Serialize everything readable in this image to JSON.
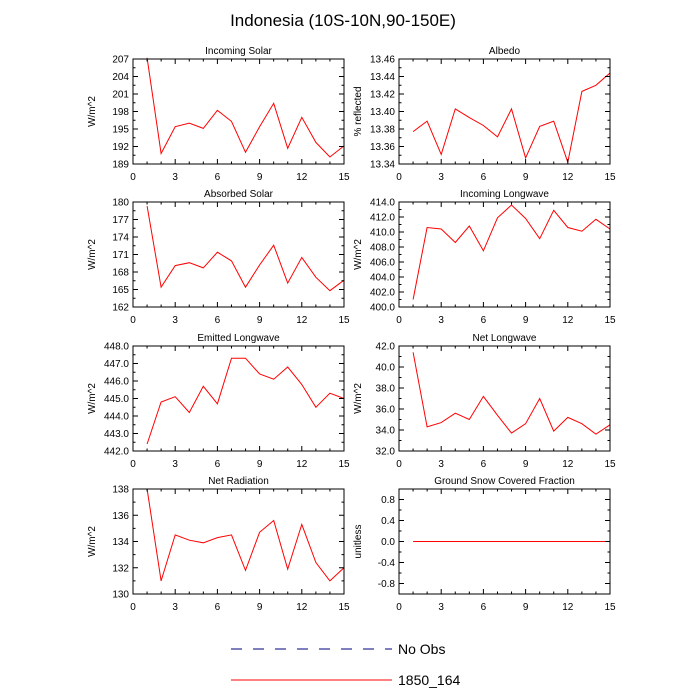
{
  "title": "Indonesia (10S-10N,90-150E)",
  "colors": {
    "model": "#ff0000",
    "obs": "#000080"
  },
  "legend": [
    {
      "label": "No Obs",
      "style": "dashed",
      "color": "#000080"
    },
    {
      "label": "1850_164",
      "style": "solid",
      "color": "#ff0000"
    }
  ],
  "chart_data": [
    {
      "type": "line",
      "title": "Incoming Solar",
      "ylabel": "W/m^2",
      "xlabel": "",
      "xlim": [
        0,
        15
      ],
      "xticks": [
        0,
        3,
        6,
        9,
        12,
        15
      ],
      "ylim": [
        189,
        207
      ],
      "yticks": [
        189,
        192,
        195,
        198,
        201,
        204,
        207
      ],
      "ytick_decimals": 0,
      "grid": false,
      "series": [
        {
          "name": "1850_164",
          "x": [
            1,
            2,
            3,
            4,
            5,
            6,
            7,
            8,
            9,
            10,
            11,
            12,
            13,
            14,
            15
          ],
          "values": [
            207.2,
            190.8,
            195.4,
            196.0,
            195.1,
            198.2,
            196.3,
            191.0,
            195.4,
            199.4,
            191.7,
            197.0,
            192.7,
            190.2,
            192.1
          ]
        }
      ]
    },
    {
      "type": "line",
      "title": "Albedo",
      "ylabel": "% reflected",
      "xlabel": "",
      "xlim": [
        0,
        15
      ],
      "xticks": [
        0,
        3,
        6,
        9,
        12,
        15
      ],
      "ylim": [
        13.34,
        13.46
      ],
      "yticks": [
        13.34,
        13.36,
        13.38,
        13.4,
        13.42,
        13.44,
        13.46
      ],
      "ytick_decimals": 2,
      "grid": false,
      "series": [
        {
          "name": "1850_164",
          "x": [
            1,
            2,
            3,
            4,
            5,
            6,
            7,
            8,
            9,
            10,
            11,
            12,
            13,
            14,
            15
          ],
          "values": [
            13.377,
            13.389,
            13.351,
            13.403,
            13.393,
            13.384,
            13.371,
            13.403,
            13.347,
            13.383,
            13.389,
            13.342,
            13.423,
            13.43,
            13.444
          ]
        }
      ]
    },
    {
      "type": "line",
      "title": "Absorbed Solar",
      "ylabel": "W/m^2",
      "xlabel": "",
      "xlim": [
        0,
        15
      ],
      "xticks": [
        0,
        3,
        6,
        9,
        12,
        15
      ],
      "ylim": [
        162,
        180
      ],
      "yticks": [
        162,
        165,
        168,
        171,
        174,
        177,
        180
      ],
      "ytick_decimals": 0,
      "grid": false,
      "series": [
        {
          "name": "1850_164",
          "x": [
            1,
            2,
            3,
            4,
            5,
            6,
            7,
            8,
            9,
            10,
            11,
            12,
            13,
            14,
            15
          ],
          "values": [
            179.3,
            165.4,
            169.1,
            169.6,
            168.7,
            171.4,
            169.9,
            165.4,
            169.2,
            172.6,
            166.1,
            170.5,
            167.1,
            164.8,
            166.6
          ]
        }
      ]
    },
    {
      "type": "line",
      "title": "Incoming Longwave",
      "ylabel": "W/m^2",
      "xlabel": "",
      "xlim": [
        0,
        15
      ],
      "xticks": [
        0,
        3,
        6,
        9,
        12,
        15
      ],
      "ylim": [
        400,
        414
      ],
      "yticks": [
        400,
        402,
        404,
        406,
        408,
        410,
        412,
        414
      ],
      "ytick_decimals": 1,
      "grid": false,
      "series": [
        {
          "name": "1850_164",
          "x": [
            1,
            2,
            3,
            4,
            5,
            6,
            7,
            8,
            9,
            10,
            11,
            12,
            13,
            14,
            15
          ],
          "values": [
            401.0,
            410.6,
            410.4,
            408.6,
            410.8,
            407.5,
            411.9,
            413.6,
            411.8,
            409.1,
            412.9,
            410.6,
            410.1,
            411.7,
            410.4
          ]
        }
      ]
    },
    {
      "type": "line",
      "title": "Emitted Longwave",
      "ylabel": "W/m^2",
      "xlabel": "",
      "xlim": [
        0,
        15
      ],
      "xticks": [
        0,
        3,
        6,
        9,
        12,
        15
      ],
      "ylim": [
        442,
        448
      ],
      "yticks": [
        442,
        443,
        444,
        445,
        446,
        447,
        448
      ],
      "ytick_decimals": 1,
      "grid": false,
      "series": [
        {
          "name": "1850_164",
          "x": [
            1,
            2,
            3,
            4,
            5,
            6,
            7,
            8,
            9,
            10,
            11,
            12,
            13,
            14,
            15
          ],
          "values": [
            442.4,
            444.8,
            445.1,
            444.2,
            445.7,
            444.7,
            447.3,
            447.3,
            446.4,
            446.1,
            446.8,
            445.8,
            444.5,
            445.3,
            445.0
          ]
        }
      ]
    },
    {
      "type": "line",
      "title": "Net Longwave",
      "ylabel": "W/m^2",
      "xlabel": "",
      "xlim": [
        0,
        15
      ],
      "xticks": [
        0,
        3,
        6,
        9,
        12,
        15
      ],
      "ylim": [
        32,
        42
      ],
      "yticks": [
        32,
        34,
        36,
        38,
        40,
        42
      ],
      "ytick_decimals": 1,
      "grid": false,
      "series": [
        {
          "name": "1850_164",
          "x": [
            1,
            2,
            3,
            4,
            5,
            6,
            7,
            8,
            9,
            10,
            11,
            12,
            13,
            14,
            15
          ],
          "values": [
            41.4,
            34.3,
            34.7,
            35.6,
            35.0,
            37.2,
            35.4,
            33.7,
            34.6,
            37.0,
            33.9,
            35.2,
            34.6,
            33.6,
            34.5
          ]
        }
      ]
    },
    {
      "type": "line",
      "title": "Net Radiation",
      "ylabel": "W/m^2",
      "xlabel": "",
      "xlim": [
        0,
        15
      ],
      "xticks": [
        0,
        3,
        6,
        9,
        12,
        15
      ],
      "ylim": [
        130,
        138
      ],
      "yticks": [
        130,
        132,
        134,
        136,
        138
      ],
      "ytick_decimals": 0,
      "grid": false,
      "series": [
        {
          "name": "1850_164",
          "x": [
            1,
            2,
            3,
            4,
            5,
            6,
            7,
            8,
            9,
            10,
            11,
            12,
            13,
            14,
            15
          ],
          "values": [
            138.0,
            131.0,
            134.5,
            134.1,
            133.9,
            134.3,
            134.5,
            131.8,
            134.7,
            135.6,
            131.9,
            135.3,
            132.4,
            131.0,
            132.0
          ]
        }
      ]
    },
    {
      "type": "line",
      "title": "Ground Snow Covered Fraction",
      "ylabel": "unitless",
      "xlabel": "",
      "xlim": [
        0,
        15
      ],
      "xticks": [
        0,
        3,
        6,
        9,
        12,
        15
      ],
      "ylim": [
        -1.0,
        1.0
      ],
      "yticks": [
        -0.8,
        -0.4,
        0.0,
        0.4,
        0.8
      ],
      "ytick_decimals": 1,
      "grid": false,
      "series": [
        {
          "name": "1850_164",
          "x": [
            1,
            2,
            3,
            4,
            5,
            6,
            7,
            8,
            9,
            10,
            11,
            12,
            13,
            14,
            15
          ],
          "values": [
            0,
            0,
            0,
            0,
            0,
            0,
            0,
            0,
            0,
            0,
            0,
            0,
            0,
            0,
            0
          ]
        }
      ]
    }
  ]
}
